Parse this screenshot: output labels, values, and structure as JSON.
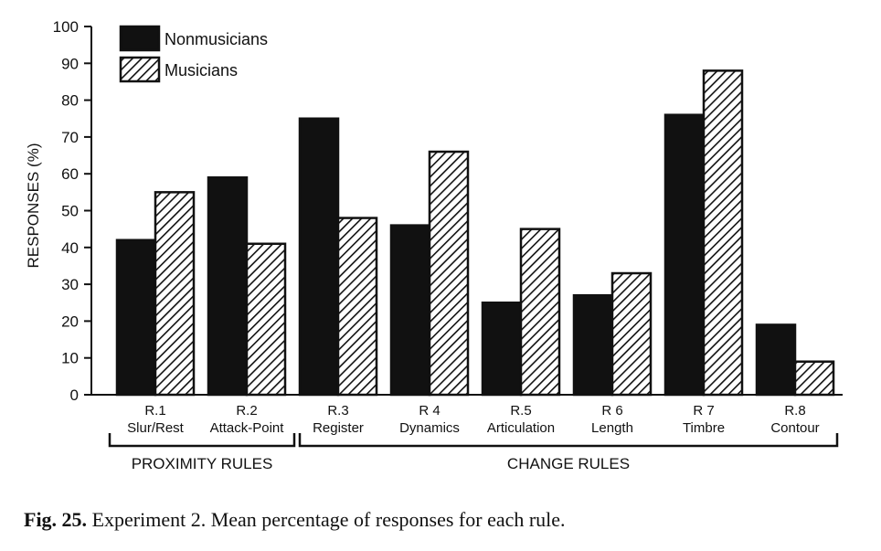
{
  "chart_data": {
    "type": "bar",
    "ylabel": "RESPONSES (%)",
    "ylim": [
      0,
      100
    ],
    "yticks": [
      0,
      10,
      20,
      30,
      40,
      50,
      60,
      70,
      80,
      90,
      100
    ],
    "categories": [
      {
        "code": "R.1",
        "name": "Slur/Rest"
      },
      {
        "code": "R.2",
        "name": "Attack-Point"
      },
      {
        "code": "R.3",
        "name": "Register"
      },
      {
        "code": "R 4",
        "name": "Dynamics"
      },
      {
        "code": "R.5",
        "name": "Articulation"
      },
      {
        "code": "R 6",
        "name": "Length"
      },
      {
        "code": "R 7",
        "name": "Timbre"
      },
      {
        "code": "R.8",
        "name": "Contour"
      }
    ],
    "series": [
      {
        "name": "Nonmusicians",
        "fill": "solid",
        "color": "#111111",
        "values": [
          42,
          59,
          75,
          46,
          25,
          27,
          76,
          19
        ]
      },
      {
        "name": "Musicians",
        "fill": "hatched",
        "color": "#111111",
        "values": [
          55,
          41,
          48,
          66,
          45,
          33,
          88,
          9
        ]
      }
    ],
    "groups": [
      {
        "label": "PROXIMITY RULES",
        "from": 0,
        "to": 1
      },
      {
        "label": "CHANGE RULES",
        "from": 2,
        "to": 7
      }
    ],
    "legend_position": "top-left",
    "grid": false
  },
  "caption": {
    "label": "Fig. 25.",
    "text": "Experiment 2. Mean percentage of responses for each rule."
  }
}
